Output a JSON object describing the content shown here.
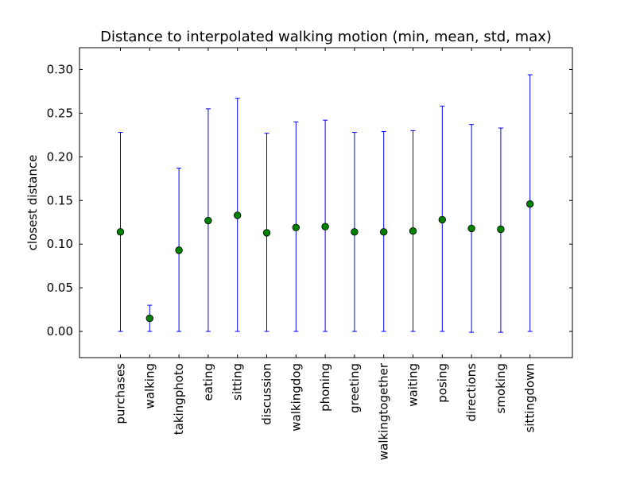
{
  "colors": {
    "background": "#ffffff",
    "axes": "#000000",
    "errorbar": "#0000ff",
    "marker_fill": "#008000",
    "marker_edge": "#000000"
  },
  "chart_data": {
    "type": "scatter",
    "title": "Distance to interpolated walking motion (min, mean, std, max)",
    "xlabel": "",
    "ylabel": "closest distance",
    "ylim": [
      -0.03,
      0.325
    ],
    "yticks": [
      0.0,
      0.05,
      0.1,
      0.15,
      0.2,
      0.25,
      0.3
    ],
    "ytick_labels": [
      "0.00",
      "0.05",
      "0.10",
      "0.15",
      "0.20",
      "0.25",
      "0.30"
    ],
    "grid": false,
    "legend": "none",
    "categories": [
      "purchases",
      "walking",
      "takingphoto",
      "eating",
      "sitting",
      "discussion",
      "walkingdog",
      "phoning",
      "greeting",
      "walkingtogether",
      "waiting",
      "posing",
      "directions",
      "smoking",
      "sittingdown"
    ],
    "mean": [
      0.114,
      0.015,
      0.093,
      0.127,
      0.133,
      0.113,
      0.119,
      0.12,
      0.114,
      0.114,
      0.115,
      0.128,
      0.118,
      0.117,
      0.146
    ],
    "min": [
      0.0,
      0.0,
      0.0,
      0.0,
      0.0,
      0.0,
      0.0,
      0.0,
      0.0,
      0.0,
      0.0,
      0.0,
      -0.001,
      -0.001,
      0.0
    ],
    "max": [
      0.228,
      0.03,
      0.187,
      0.255,
      0.267,
      0.227,
      0.24,
      0.242,
      0.228,
      0.229,
      0.23,
      0.258,
      0.237,
      0.233,
      0.294
    ]
  }
}
